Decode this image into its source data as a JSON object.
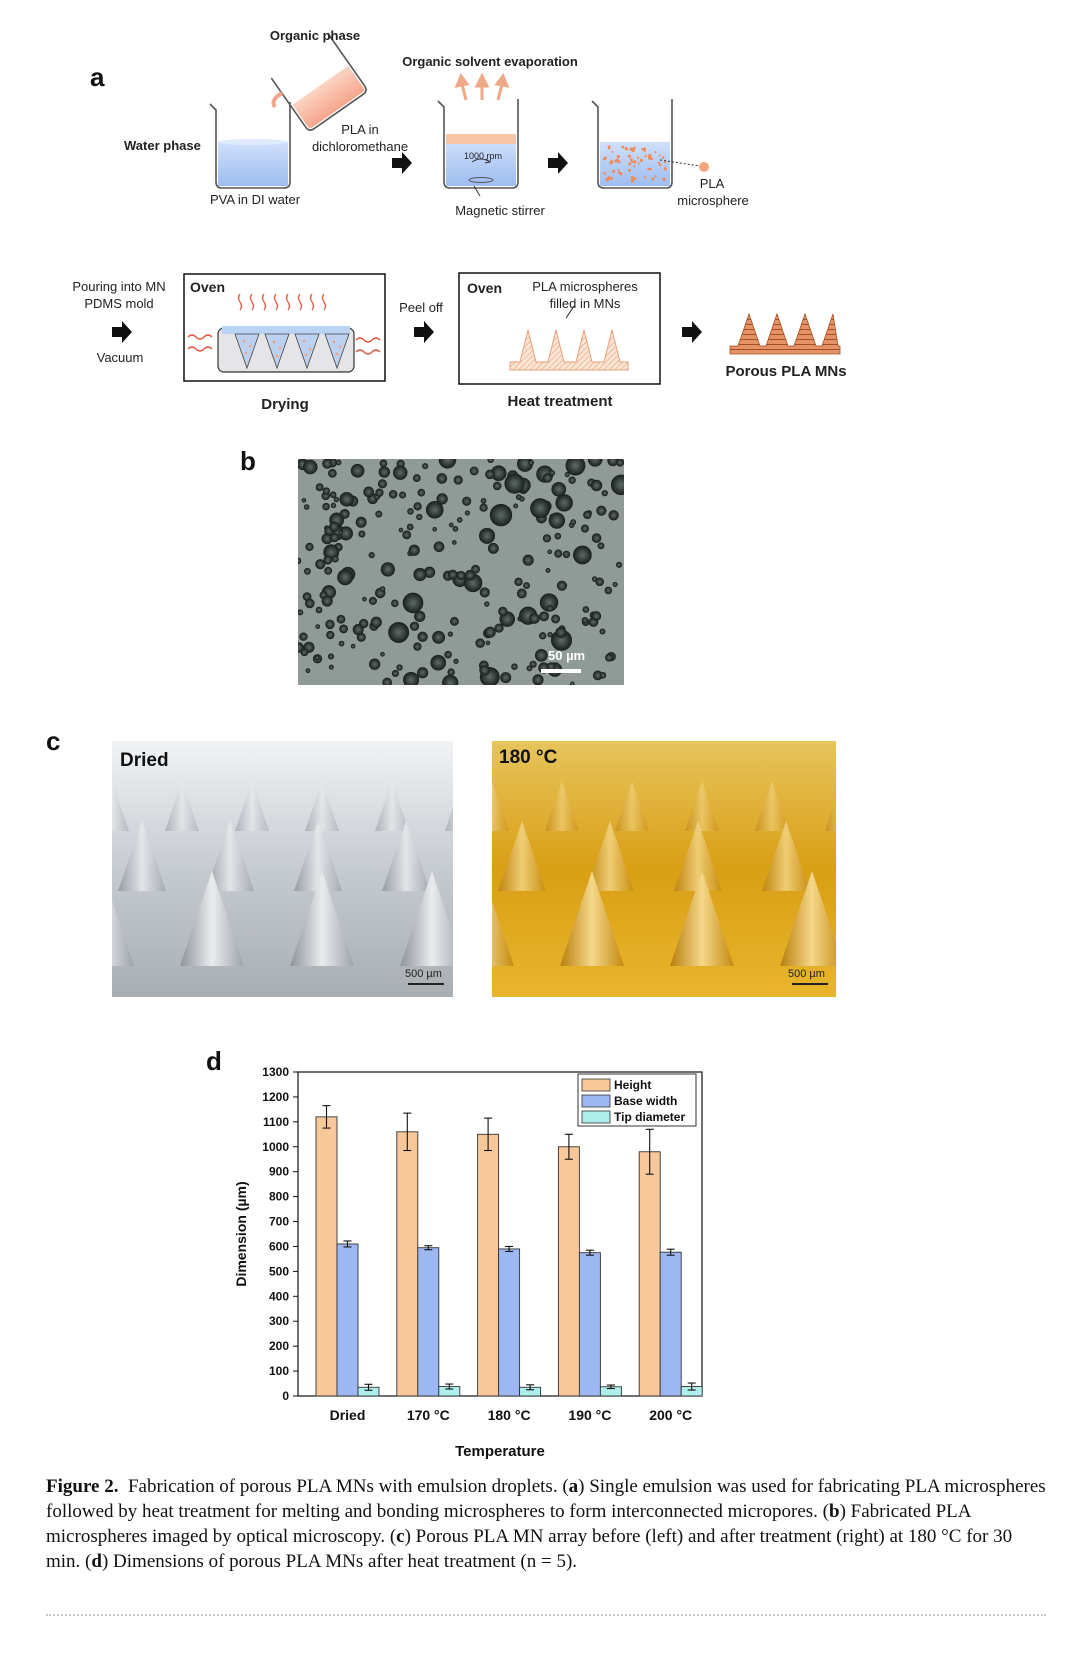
{
  "panel_a": {
    "letter": "a",
    "organic_phase": "Organic phase",
    "solvent_evap": "Organic solvent evaporation",
    "water_phase": "Water phase",
    "pla_in": "PLA in",
    "dichloromethane": "dichloromethane",
    "pva": "PVA in DI water",
    "rpm": "1000 rpm",
    "stirrer": "Magnetic stirrer",
    "pla": "PLA",
    "microsphere": "microsphere",
    "pouring1": "Pouring into MN",
    "pouring2": "PDMS mold",
    "vacuum": "Vacuum",
    "oven1": "Oven",
    "drying": "Drying",
    "peel_off": "Peel off",
    "oven2": "Oven",
    "filled1": "PLA microspheres",
    "filled2": "filled in MNs",
    "heat": "Heat treatment",
    "porous": "Porous PLA MNs"
  },
  "panel_b": {
    "letter": "b",
    "scale": "50 µm"
  },
  "panel_c": {
    "letter": "c",
    "left_label": "Dried",
    "right_label": "180 °C",
    "left_scale": "500 µm",
    "right_scale": "500 µm"
  },
  "chart_data": {
    "type": "bar",
    "letter": "d",
    "categories": [
      "Dried",
      "170 °C",
      "180 °C",
      "190 °C",
      "200 °C"
    ],
    "series": [
      {
        "name": "Height",
        "values": [
          1120,
          1060,
          1050,
          1000,
          980
        ],
        "errors": [
          45,
          75,
          65,
          50,
          90
        ],
        "color": "#f9c89a"
      },
      {
        "name": "Base width",
        "values": [
          610,
          595,
          590,
          575,
          577
        ],
        "errors": [
          12,
          8,
          10,
          10,
          12
        ],
        "color": "#9db7f3"
      },
      {
        "name": "Tip diameter",
        "values": [
          35,
          38,
          35,
          37,
          38
        ],
        "errors": [
          12,
          10,
          10,
          7,
          14
        ],
        "color": "#aeeeed"
      }
    ],
    "xlabel": "Temperature",
    "ylabel": "Dimension (µm)",
    "ylim": [
      0,
      1300
    ],
    "yticks": [
      0,
      100,
      200,
      300,
      400,
      500,
      600,
      700,
      800,
      900,
      1000,
      1100,
      1200,
      1300
    ],
    "legend_position": "top-right",
    "grid": false
  },
  "caption": {
    "label": "Figure 2.",
    "text1": "Fabrication of porous PLA MNs with emulsion droplets. (",
    "a": "a",
    "text2": ") Single emulsion was used for fabricating PLA microspheres followed by heat treatment for melting and bonding microspheres to form interconnected micropores. (",
    "b": "b",
    "text3": ") Fabricated PLA microspheres imaged by optical microscopy. (",
    "c": "c",
    "text4": ") Porous PLA MN array before (left) and after treatment (right) at 180 °C for 30 min. (",
    "d": "d",
    "text5": ") Dimensions of porous PLA MNs after heat treatment (n = 5)."
  }
}
